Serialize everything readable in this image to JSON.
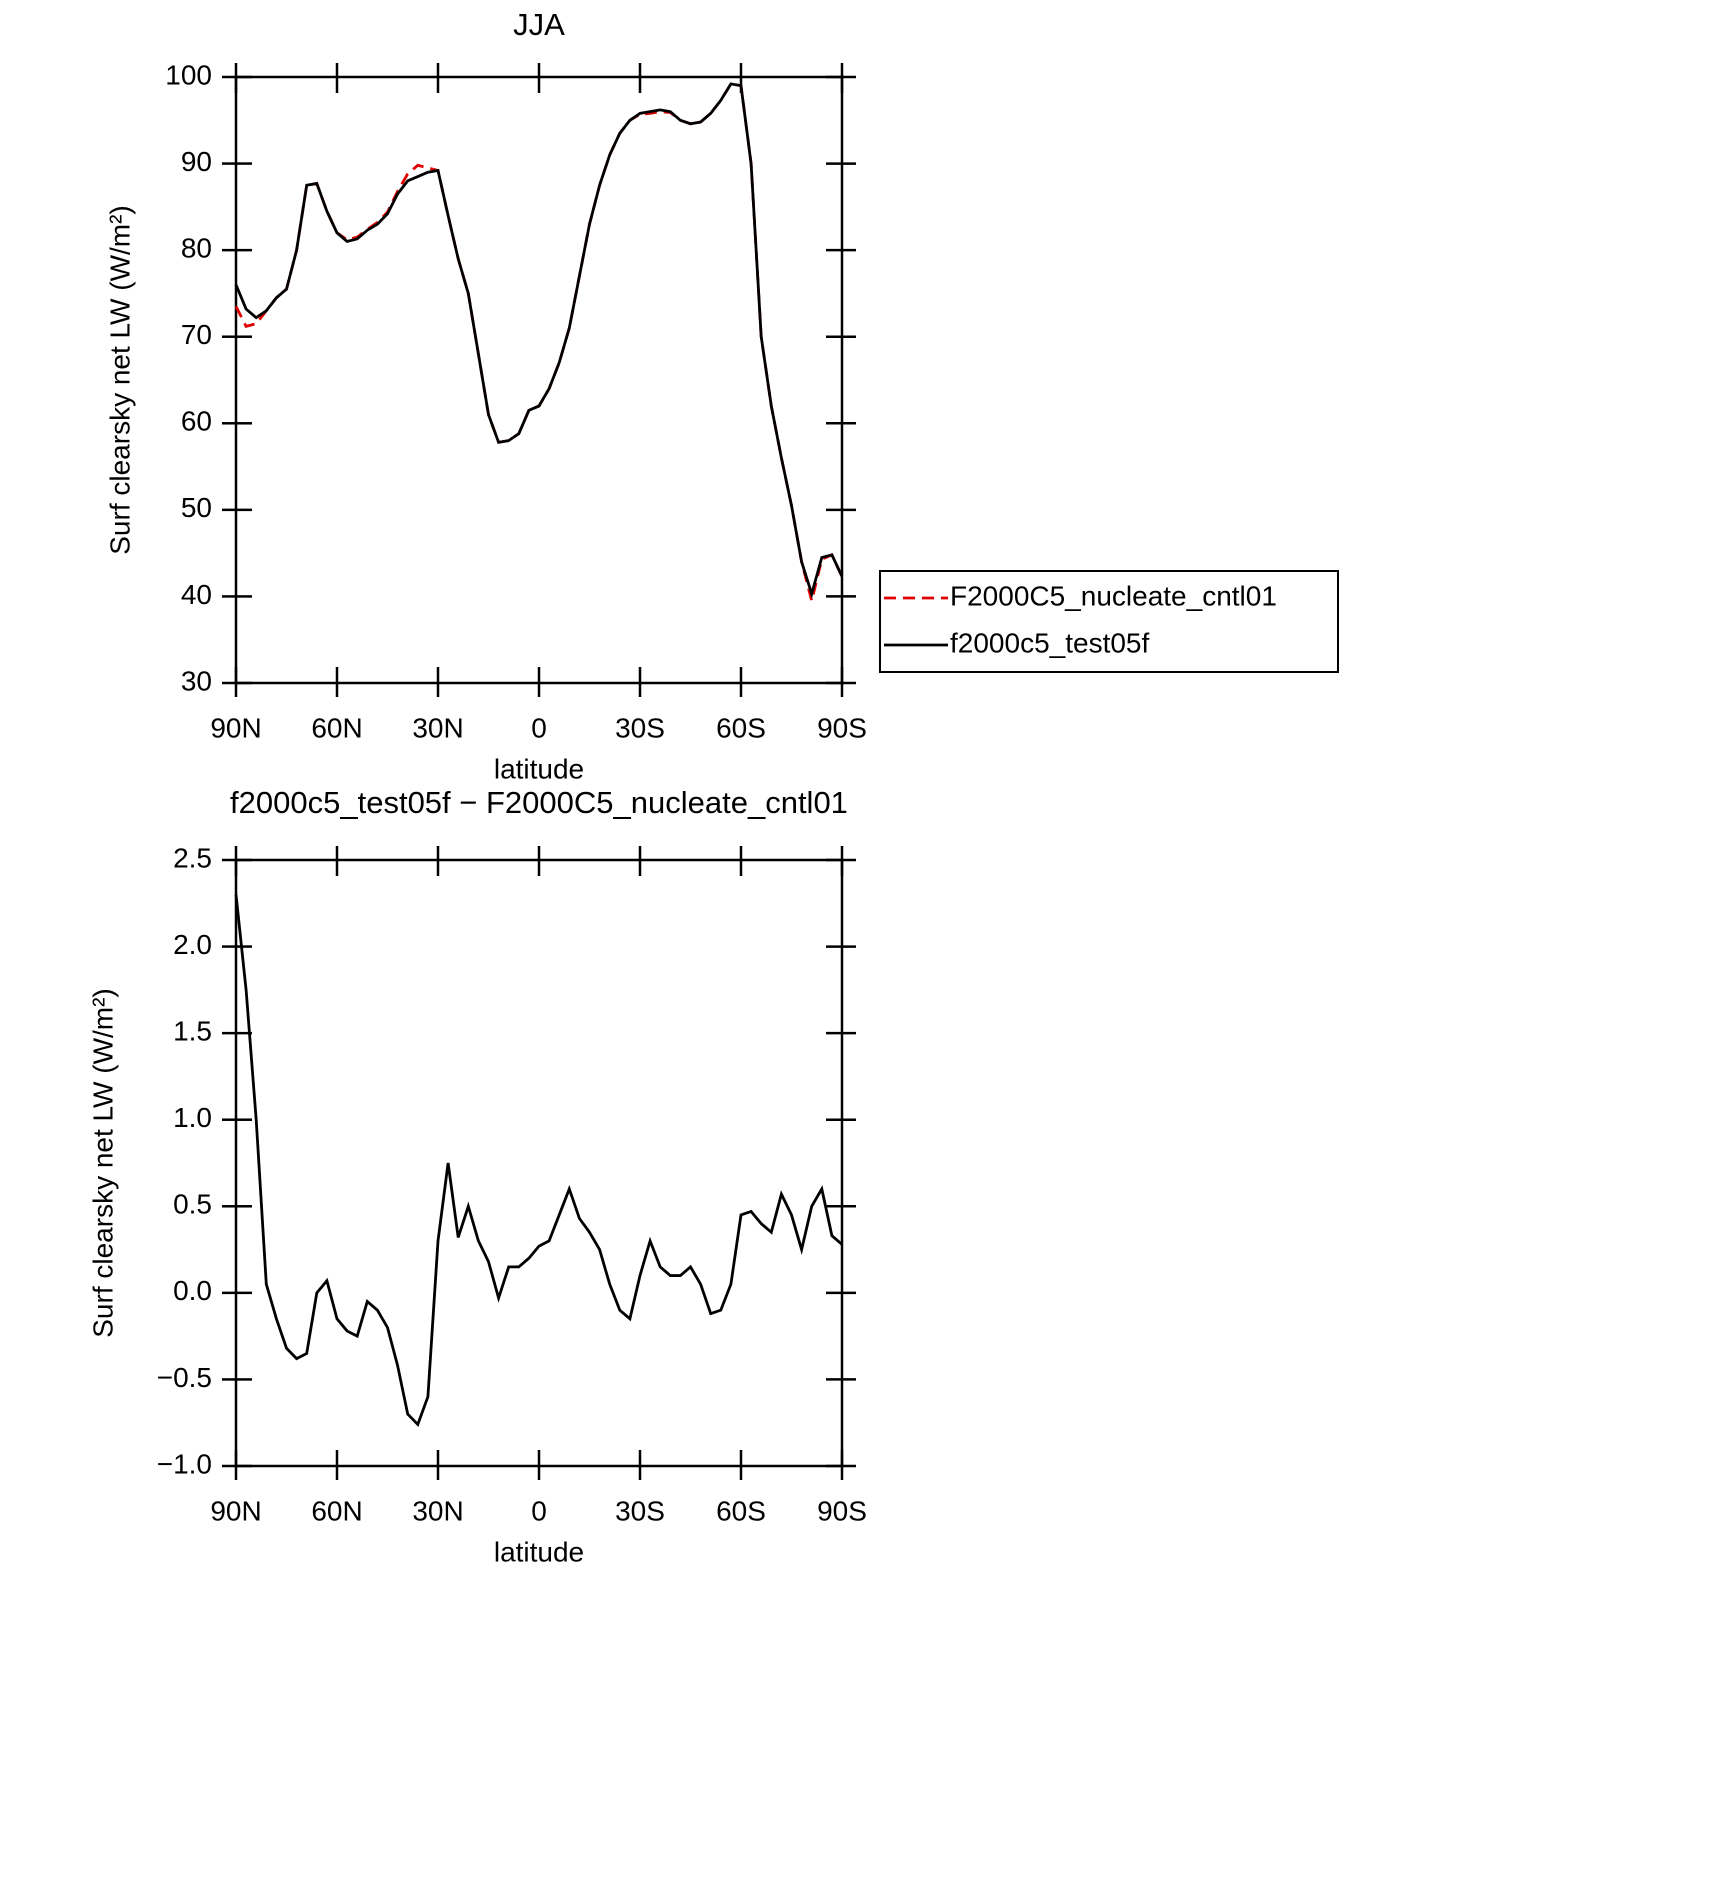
{
  "chart_data": [
    {
      "type": "line",
      "title": "JJA",
      "xlabel": "latitude",
      "ylabel": "Surf clearsky net LW (W/m²)",
      "x": [
        90,
        87,
        84,
        81,
        78,
        75,
        72,
        69,
        66,
        63,
        60,
        57,
        54,
        51,
        48,
        45,
        42,
        39,
        36,
        33,
        30,
        27,
        24,
        21,
        18,
        15,
        12,
        9,
        6,
        3,
        0,
        -3,
        -6,
        -9,
        -12,
        -15,
        -18,
        -21,
        -24,
        -27,
        -30,
        -33,
        -36,
        -39,
        -42,
        -45,
        -48,
        -51,
        -54,
        -57,
        -60,
        -63,
        -66,
        -69,
        -72,
        -75,
        -78,
        -81,
        -84,
        -87,
        -90
      ],
      "series": [
        {
          "name": "F2000C5_nucleate_cntl01",
          "color": "#e00000",
          "dash": true,
          "values": [
            73.5,
            71.2,
            71.5,
            73,
            74.5,
            75.5,
            80,
            87.5,
            87.7,
            84.5,
            82,
            81.2,
            81.5,
            82.4,
            83.2,
            84.4,
            86.8,
            88.8,
            89.8,
            89.5,
            89.2,
            84,
            79,
            75,
            68,
            61,
            57.8,
            58,
            58.8,
            61.5,
            62,
            64,
            67,
            71,
            77,
            83,
            87.5,
            91,
            93.5,
            95,
            95.7,
            95.8,
            96,
            95.9,
            95,
            94.6,
            94.8,
            95.8,
            97.3,
            99.2,
            99,
            90,
            70,
            62,
            56,
            50.5,
            44,
            39.5,
            44.3,
            44.8,
            42.3
          ]
        },
        {
          "name": "f2000c5_test05f",
          "color": "#000000",
          "dash": false,
          "values": [
            76,
            73.2,
            72.2,
            73,
            74.5,
            75.5,
            80,
            87.5,
            87.7,
            84.5,
            82,
            81,
            81.3,
            82.3,
            83,
            84.2,
            86.5,
            88,
            88.5,
            89,
            89.2,
            84,
            79,
            75,
            68,
            61,
            57.8,
            58,
            58.8,
            61.5,
            62,
            64,
            67,
            71,
            77,
            83,
            87.5,
            91,
            93.5,
            95,
            95.8,
            96,
            96.2,
            96,
            95,
            94.6,
            94.8,
            95.8,
            97.3,
            99.2,
            99,
            90,
            70,
            62,
            56,
            50.5,
            44,
            40.3,
            44.5,
            44.8,
            42.3
          ]
        }
      ],
      "xlim": [
        90,
        -90
      ],
      "xticks": [
        {
          "value": 90,
          "label": "90N"
        },
        {
          "value": 60,
          "label": "60N"
        },
        {
          "value": 30,
          "label": "30N"
        },
        0,
        {
          "value": -30,
          "label": "30S"
        },
        {
          "value": -60,
          "label": "60S"
        },
        {
          "value": -90,
          "label": "90S"
        }
      ],
      "ylim": [
        30,
        100
      ],
      "yticks": [
        30,
        40,
        50,
        60,
        70,
        80,
        90,
        100
      ],
      "legend": "right"
    },
    {
      "type": "line",
      "title": "f2000c5_test05f − F2000C5_nucleate_cntl01",
      "xlabel": "latitude",
      "ylabel": "Surf clearsky net LW (W/m²)",
      "x": [
        90,
        87,
        84,
        81,
        78,
        75,
        72,
        69,
        66,
        63,
        60,
        57,
        54,
        51,
        48,
        45,
        42,
        39,
        36,
        33,
        30,
        27,
        24,
        21,
        18,
        15,
        12,
        9,
        6,
        3,
        0,
        -3,
        -6,
        -9,
        -12,
        -15,
        -18,
        -21,
        -24,
        -27,
        -30,
        -33,
        -36,
        -39,
        -42,
        -45,
        -48,
        -51,
        -54,
        -57,
        -60,
        -63,
        -66,
        -69,
        -72,
        -75,
        -78,
        -81,
        -84,
        -87,
        -90
      ],
      "series": [
        {
          "color": "#000000",
          "dash": false,
          "values": [
            2.3,
            1.75,
            1.0,
            0.05,
            -0.15,
            -0.32,
            -0.38,
            -0.35,
            0.0,
            0.07,
            -0.15,
            -0.22,
            -0.25,
            -0.05,
            -0.1,
            -0.2,
            -0.42,
            -0.7,
            -0.76,
            -0.6,
            0.3,
            0.75,
            0.32,
            0.5,
            0.3,
            0.18,
            -0.03,
            0.15,
            0.15,
            0.2,
            0.27,
            0.3,
            0.45,
            0.6,
            0.43,
            0.35,
            0.25,
            0.05,
            -0.1,
            -0.15,
            0.1,
            0.3,
            0.15,
            0.1,
            0.1,
            0.15,
            0.05,
            -0.12,
            -0.1,
            0.05,
            0.45,
            0.47,
            0.4,
            0.35,
            0.57,
            0.45,
            0.25,
            0.5,
            0.6,
            0.33,
            0.28
          ]
        }
      ],
      "xlim": [
        90,
        -90
      ],
      "xticks": [
        {
          "value": 90,
          "label": "90N"
        },
        {
          "value": 60,
          "label": "60N"
        },
        {
          "value": 30,
          "label": "30N"
        },
        0,
        {
          "value": -30,
          "label": "30S"
        },
        {
          "value": -60,
          "label": "60S"
        },
        {
          "value": -90,
          "label": "90S"
        }
      ],
      "ylim": [
        -1,
        2.5
      ],
      "yticks": [
        {
          "value": -1,
          "label": "−1.0"
        },
        {
          "value": -0.5,
          "label": "−0.5"
        },
        {
          "value": 0,
          "label": "0.0"
        },
        0.5,
        {
          "value": 1,
          "label": "1.0"
        },
        1.5,
        {
          "value": 2,
          "label": "2.0"
        },
        2.5
      ]
    }
  ]
}
